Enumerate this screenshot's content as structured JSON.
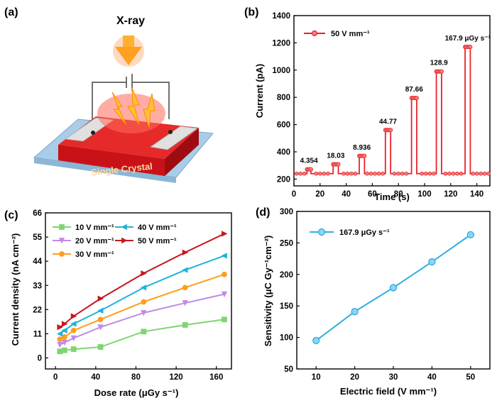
{
  "panels": {
    "a": {
      "label": "(a)",
      "xray_label": "X-ray",
      "crystal_label": "Single Crystal",
      "colors": {
        "crystal": "#d8141c",
        "substrate": "#a9cde8",
        "electrode": "#d8d8d8",
        "arrow": "#ffb02e"
      }
    },
    "b": {
      "label": "(b)"
    },
    "c": {
      "label": "(c)"
    },
    "d": {
      "label": "(d)"
    }
  },
  "chart_data": [
    {
      "id": "b",
      "type": "line",
      "xlabel": "Time (s)",
      "ylabel": "Current (pA)",
      "xlim": [
        0,
        150
      ],
      "ylim": [
        150,
        1400
      ],
      "xticks": [
        0,
        20,
        40,
        60,
        80,
        100,
        120,
        140
      ],
      "yticks": [
        200,
        400,
        600,
        800,
        1000,
        1200,
        1400
      ],
      "legend": {
        "position": "top-left",
        "entries": [
          "50 V mm⁻¹"
        ]
      },
      "series": [
        {
          "name": "50 V mm⁻¹",
          "color": "#e8232a",
          "baseline": 240,
          "pulses": [
            {
              "start": 10,
              "end": 13,
              "value": 272,
              "dose_label": "4.354"
            },
            {
              "start": 30,
              "end": 34,
              "value": 308,
              "dose_label": "18.03"
            },
            {
              "start": 50,
              "end": 54,
              "value": 370,
              "dose_label": "8.936"
            },
            {
              "start": 70,
              "end": 74,
              "value": 560,
              "dose_label": "44.77"
            },
            {
              "start": 90,
              "end": 94,
              "value": 795,
              "dose_label": "87.66"
            },
            {
              "start": 109,
              "end": 113,
              "value": 990,
              "dose_label": "128.9"
            },
            {
              "start": 131,
              "end": 135,
              "value": 1170,
              "dose_label": "167.9 μGy s⁻¹"
            }
          ]
        }
      ]
    },
    {
      "id": "c",
      "type": "line",
      "xlabel": "Dose rate (μGy s⁻¹)",
      "ylabel": "Current density (nA cm⁻²)",
      "xlim": [
        -10,
        175
      ],
      "ylim": [
        -5,
        66
      ],
      "xticks": [
        0,
        40,
        80,
        120,
        160
      ],
      "yticks": [
        0,
        11,
        22,
        33,
        44,
        55,
        66
      ],
      "x": [
        4.354,
        8.936,
        18.03,
        44.77,
        87.66,
        128.9,
        167.9
      ],
      "series": [
        {
          "name": "10 V mm⁻¹",
          "color": "#7dd66f",
          "marker": "square",
          "values": [
            3.0,
            3.5,
            4.0,
            5.0,
            12.0,
            15.0,
            17.5
          ]
        },
        {
          "name": "20 V mm⁻¹",
          "color": "#c08ae8",
          "marker": "triangle-down",
          "values": [
            6.0,
            7.0,
            9.0,
            14.0,
            20.5,
            25.0,
            29.0
          ]
        },
        {
          "name": "30 V mm⁻¹",
          "color": "#ff9d1c",
          "marker": "circle",
          "values": [
            8.5,
            9.5,
            12.5,
            17.5,
            25.5,
            32.0,
            38.0
          ]
        },
        {
          "name": "40 V mm⁻¹",
          "color": "#1fb4d8",
          "marker": "triangle-left",
          "values": [
            11.0,
            12.5,
            15.5,
            21.5,
            32.0,
            40.0,
            46.5
          ]
        },
        {
          "name": "50 V mm⁻¹",
          "color": "#c8161d",
          "marker": "triangle-right",
          "values": [
            14.0,
            15.5,
            19.0,
            27.0,
            38.5,
            48.0,
            56.5
          ]
        }
      ]
    },
    {
      "id": "d",
      "type": "line",
      "xlabel": "Electric field  (V mm⁻¹)",
      "ylabel": "Sensitivity (μC Gy⁻¹cm⁻²)",
      "xlim": [
        5,
        55
      ],
      "ylim": [
        50,
        300
      ],
      "xticks": [
        10,
        20,
        30,
        40,
        50
      ],
      "yticks": [
        50,
        100,
        150,
        200,
        250,
        300
      ],
      "legend": {
        "position": "top-left",
        "entries": [
          "167.9 μGy s⁻¹"
        ]
      },
      "x": [
        10,
        20,
        30,
        40,
        50
      ],
      "series": [
        {
          "name": "167.9 μGy s⁻¹",
          "color": "#2eaee0",
          "marker": "circle",
          "values": [
            95,
            141,
            179,
            220,
            263
          ]
        }
      ]
    }
  ]
}
